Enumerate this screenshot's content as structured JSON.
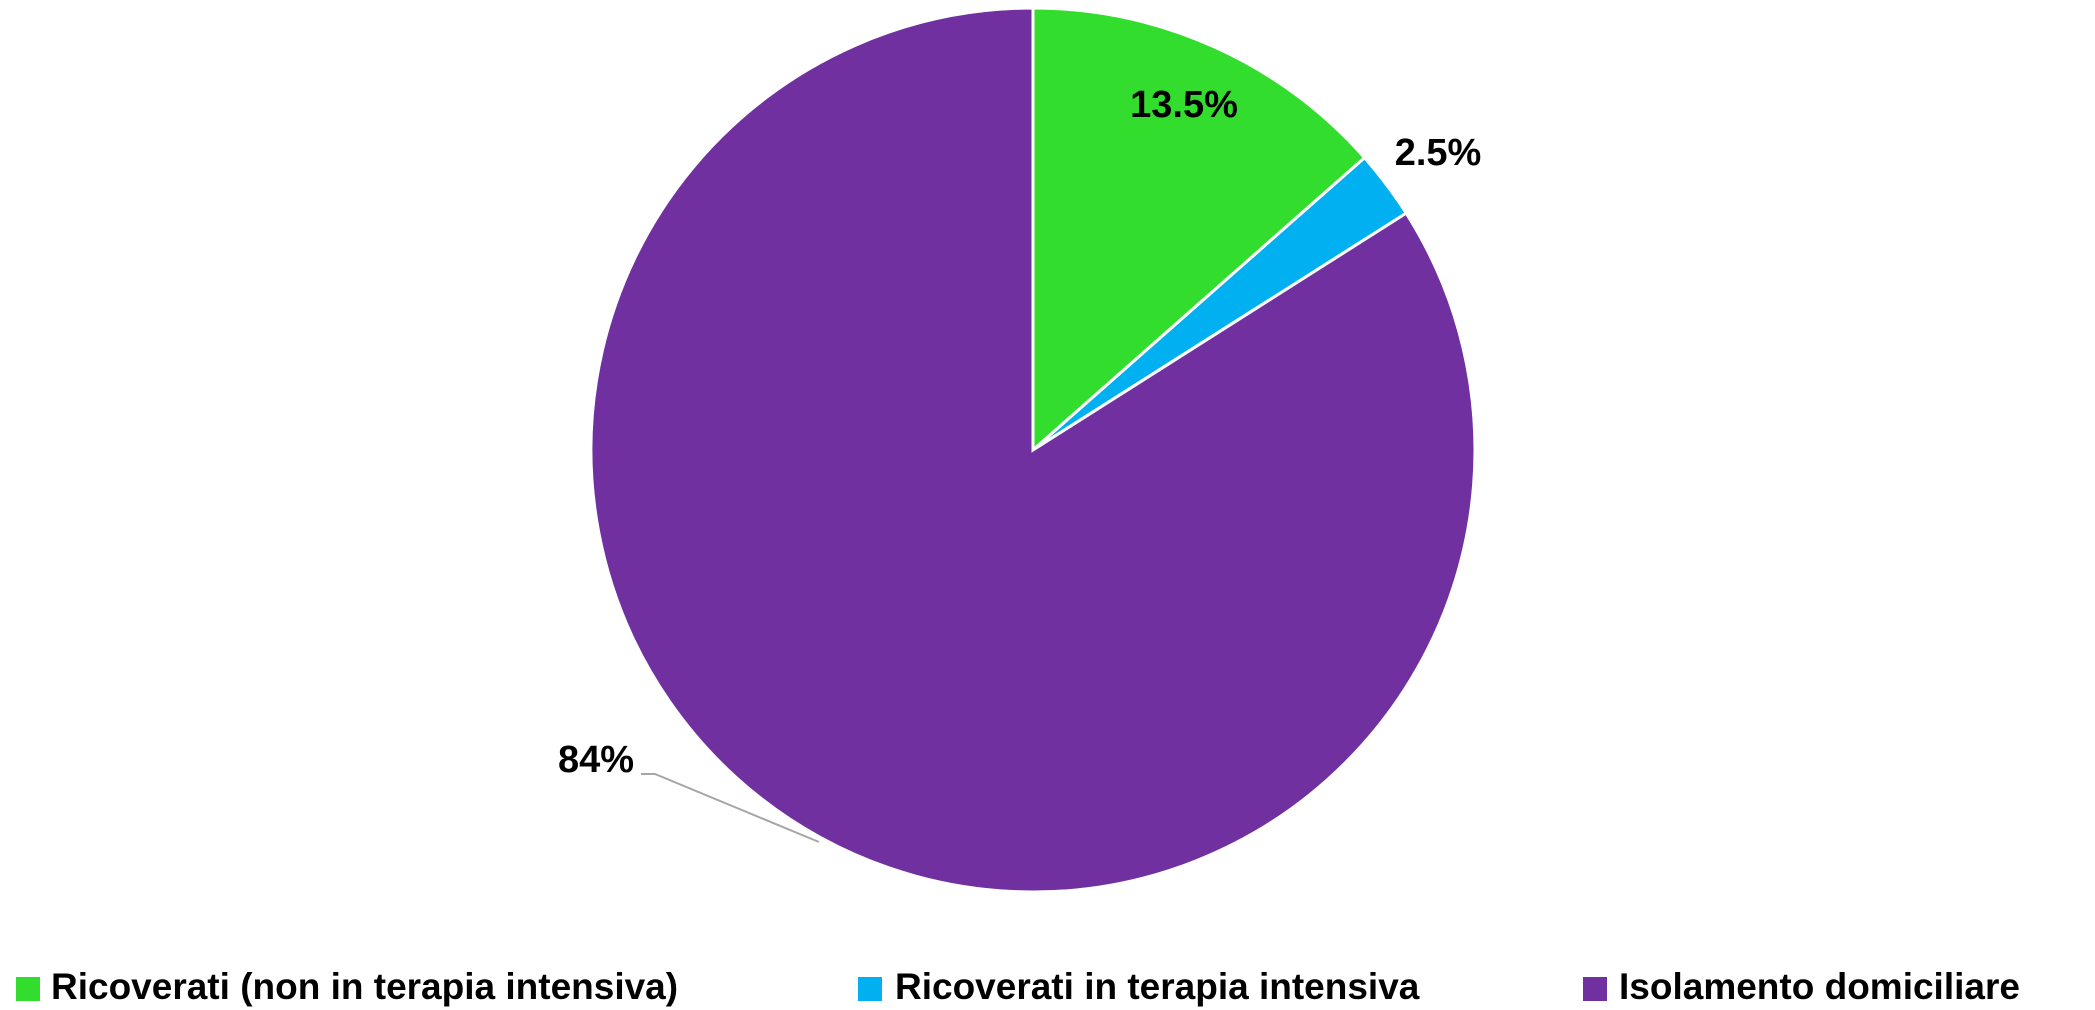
{
  "chart_data": {
    "type": "pie",
    "categories": [
      "Ricoverati (non in terapia intensiva)",
      "Ricoverati in terapia intensiva",
      "Isolamento domiciliare"
    ],
    "values": [
      13.5,
      2.5,
      84
    ],
    "value_labels": [
      "13.5%",
      "2.5%",
      "84%"
    ],
    "colors": [
      "#33dd2e",
      "#00b0f0",
      "#7030a0"
    ],
    "legend": "bottom"
  }
}
